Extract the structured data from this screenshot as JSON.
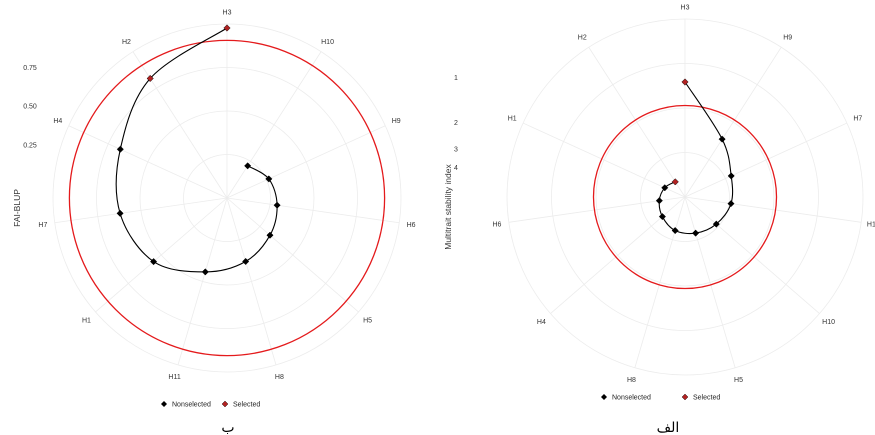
{
  "chart_data": [
    {
      "type": "radar",
      "ylabel": "FAI-BLUP",
      "ytick_values": [
        0.25,
        0.5,
        0.75
      ],
      "ytick_labels": [
        "0.25",
        "0.50",
        "0.75"
      ],
      "categories": [
        "H3",
        "H10",
        "H9",
        "H6",
        "H5",
        "H8",
        "H11",
        "H1",
        "H7",
        "H4",
        "H2"
      ],
      "series": [
        {
          "name": "Nonselected",
          "color": "#000000",
          "values": {
            "H3": 1.0,
            "H10": 0.15,
            "H9": 0.2,
            "H6": 0.23,
            "H5": 0.27,
            "H8": 0.33,
            "H11": 0.4,
            "H1": 0.53,
            "H7": 0.6,
            "H4": 0.66,
            "H2": 0.82
          }
        }
      ],
      "selected": [
        "H3",
        "H2"
      ],
      "selected_color": "#b22222",
      "threshold_circle": {
        "value": 0.92,
        "color": "#e41a1c"
      },
      "legend": {
        "placement": "bottom",
        "items": [
          "Nonselected",
          "Selected"
        ]
      },
      "caption": "ب"
    },
    {
      "type": "radar",
      "ylabel": "Multitrait stability index",
      "ytick_values": [
        1,
        2,
        3,
        4
      ],
      "ytick_labels": [
        "1",
        "2",
        "3",
        "4"
      ],
      "categories": [
        "H3",
        "H9",
        "H7",
        "H11",
        "H10",
        "H5",
        "H8",
        "H4",
        "H6",
        "H1",
        "H2"
      ],
      "series": [
        {
          "name": "Nonselected",
          "color": "#000000",
          "values": {
            "H3": 1.08,
            "H9": 2.2,
            "H7": 2.9,
            "H11": 3.1,
            "H10": 3.35,
            "H5": 3.55,
            "H8": 3.7,
            "H4": 4.0,
            "H6": 4.25,
            "H1": 4.5,
            "H2": 4.8
          }
        }
      ],
      "selected": [
        "H3",
        "H2"
      ],
      "selected_color": "#b22222",
      "threshold_circle": {
        "value": 1.55,
        "color": "#e41a1c"
      },
      "legend": {
        "placement": "bottom",
        "items": [
          "Nonselected",
          "Selected"
        ]
      },
      "caption": "الف"
    }
  ]
}
